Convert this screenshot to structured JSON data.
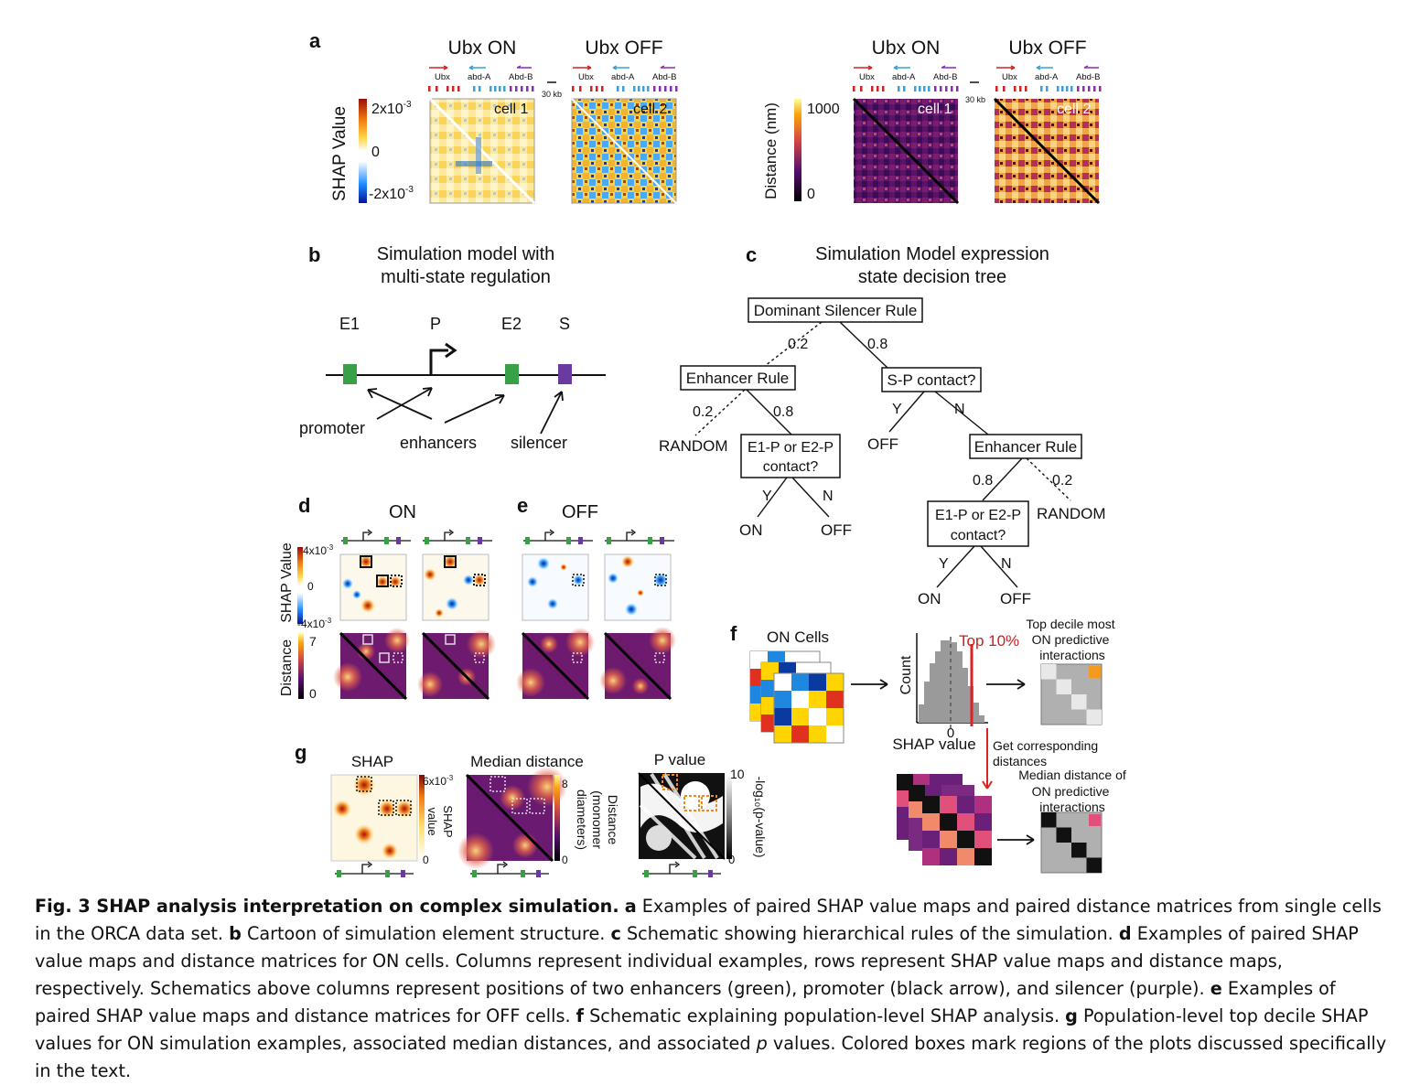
{
  "panel_letters": {
    "a": "a",
    "b": "b",
    "c": "c",
    "d": "d",
    "e": "e",
    "f": "f",
    "g": "g"
  },
  "panel_a": {
    "left_title_on": "Ubx ON",
    "left_title_off": "Ubx OFF",
    "right_title_on": "Ubx ON",
    "right_title_off": "Ubx OFF",
    "gene_labels": [
      "Ubx",
      "abd-A",
      "Abd-B"
    ],
    "scale_label": "30 kb",
    "shap_axis_label": "SHAP Value",
    "shap_ticks": {
      "top": "2x10",
      "mid": "0",
      "bottom": "-2x10",
      "exp": "-3"
    },
    "cell_labels": [
      "cell 1",
      "cell 2"
    ],
    "distance_axis_label": "Distance (nm)",
    "distance_ticks": {
      "top": "1000",
      "bottom": "0"
    }
  },
  "panel_b": {
    "title_line1": "Simulation model with",
    "title_line2": "multi-state regulation",
    "elements": [
      "E1",
      "P",
      "E2",
      "S"
    ],
    "labels": {
      "promoter": "promoter",
      "enhancers": "enhancers",
      "silencer": "silencer"
    }
  },
  "panel_c": {
    "title_line1": "Simulation Model expression",
    "title_line2": "state decision tree",
    "nodes": {
      "root": "Dominant Silencer Rule",
      "enhancer_rule_1": "Enhancer Rule",
      "sp_contact": "S-P contact?",
      "contact_1_line1": "E1-P or E2-P",
      "contact_1_line2": "contact?",
      "enhancer_rule_2": "Enhancer Rule",
      "contact_2_line1": "E1-P or E2-P",
      "contact_2_line2": "contact?"
    },
    "edge_labels": {
      "p02": "0.2",
      "p08": "0.8",
      "yes": "Y",
      "no": "N"
    },
    "leaves": {
      "random": "RANDOM",
      "on": "ON",
      "off": "OFF"
    }
  },
  "panel_d": {
    "title": "ON",
    "shap_axis_label": "SHAP Value",
    "shap_top": "4x10",
    "shap_mid": "0",
    "shap_bottom": "-4x10",
    "exp": "-3",
    "distance_axis_label": "Distance",
    "distance_top": "7",
    "distance_bottom": "0"
  },
  "panel_e": {
    "title": "OFF"
  },
  "panel_f": {
    "on_cells": "ON Cells",
    "count_label": "Count",
    "top_label": "Top 10%",
    "zero": "0",
    "shap_value": "SHAP value",
    "top_decile_line1": "Top decile most",
    "top_decile_line2": "ON predictive",
    "top_decile_line3": "interactions",
    "get_line1": "Get corresponding",
    "get_line2": "distances",
    "median_line1": "Median distance of",
    "median_line2": "ON predictive",
    "median_line3": "interactions"
  },
  "panel_g": {
    "shap_title": "SHAP",
    "median_title": "Median distance",
    "pvalue_title": "P value",
    "shap_cbar_top": "6x10",
    "exp": "-3",
    "shap_cbar_bottom": "0",
    "shap_cbar_label_1": "SHAP",
    "shap_cbar_label_2": "value",
    "dist_cbar_top": "8",
    "dist_cbar_bottom": "0",
    "dist_label_1": "Distance",
    "dist_label_2": "(monomer",
    "dist_label_3": "diameters)",
    "p_cbar_top": "10",
    "p_cbar_bottom": "0",
    "p_label": "-log₁₀(p-value)"
  },
  "caption": {
    "fig_label": "Fig. 3 SHAP analysis interpretation on complex simulation.",
    "a_letter": "a",
    "a_text": " Examples of paired SHAP value maps and paired distance matrices from single cells in the ORCA data set. ",
    "b_letter": "b",
    "b_text": " Cartoon of simulation element structure. ",
    "c_letter": "c",
    "c_text": " Schematic showing hierarchical rules of the simulation. ",
    "d_letter": "d",
    "d_text": " Examples of paired SHAP value maps and distance matrices for ON cells. Columns represent individual examples, rows represent SHAP value maps and distance maps, respectively. Schematics above columns represent positions of two enhancers (green), promoter (black arrow), and silencer (purple). ",
    "e_letter": "e",
    "e_text": " Examples of paired SHAP value maps and distance matrices for OFF cells. ",
    "f_letter": "f",
    "f_text": " Schematic explaining population-level SHAP analysis. ",
    "g_letter": "g",
    "g_text_1": " Population-level top decile SHAP values for ON simulation examples, associated median distances, and associated ",
    "g_p": "p",
    "g_text_2": " values. Colored boxes mark regions of the plots discussed specifically in the text."
  }
}
